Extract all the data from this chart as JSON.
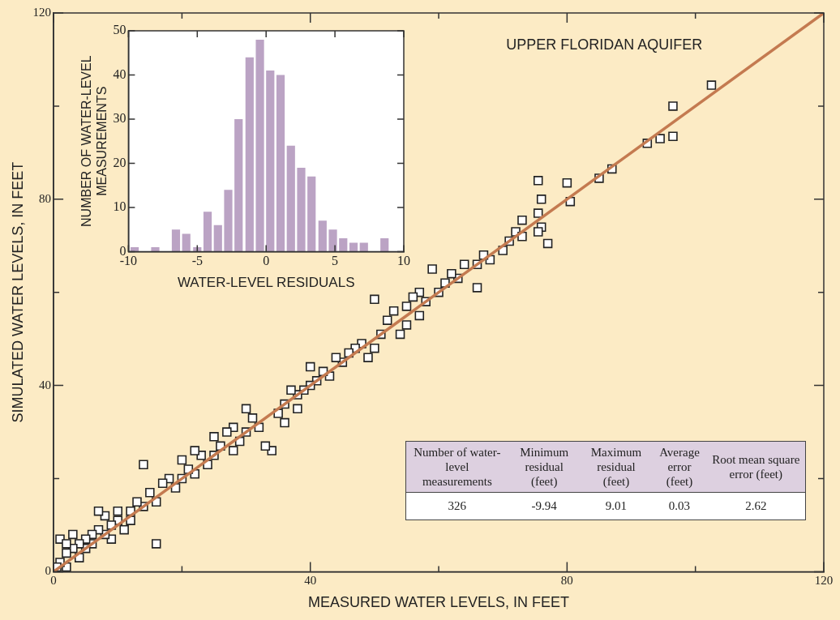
{
  "chart_data": [
    {
      "type": "scatter",
      "title": "UPPER FLORIDAN AQUIFER",
      "xlabel": "MEASURED WATER LEVELS, IN FEET",
      "ylabel": "SIMULATED WATER LEVELS, IN FEET",
      "marker": "square",
      "xlim": [
        0,
        120
      ],
      "ylim": [
        0,
        120
      ],
      "xticks": [
        0,
        {
          "value": 20,
          "label": null
        },
        40,
        {
          "value": 60,
          "label": null
        },
        80,
        {
          "value": 100,
          "label": null
        },
        120
      ],
      "yticks": [
        0,
        {
          "value": 20,
          "label": null
        },
        40,
        {
          "value": 60,
          "label": null
        },
        80,
        {
          "value": 100,
          "label": null
        },
        120
      ],
      "series": [
        {
          "type": "scatter",
          "color": "#ffffff",
          "x": [
            102.5,
            96.5,
            96.5,
            94.5,
            92.5,
            87,
            85,
            80,
            80.5,
            75.5,
            76,
            75.5,
            76,
            75.5,
            77,
            73,
            72,
            73,
            71,
            70,
            68,
            67,
            66,
            66,
            64,
            63,
            62,
            61,
            60,
            59,
            58,
            57,
            57,
            56,
            55,
            55,
            54,
            53,
            52,
            51,
            50,
            50,
            49,
            48,
            47,
            46,
            45,
            44,
            43,
            42,
            41,
            40,
            40,
            39,
            38,
            38,
            37,
            36,
            36,
            35,
            34,
            33,
            32,
            31,
            30,
            30,
            29,
            28,
            28,
            27,
            26,
            25,
            25,
            24,
            23,
            22,
            22,
            21,
            20,
            20,
            19,
            18,
            17,
            16,
            15,
            14,
            14,
            13,
            12,
            12,
            11,
            10,
            10,
            9,
            9,
            8,
            8,
            7,
            7,
            6,
            6,
            5,
            5,
            4,
            4,
            3,
            3,
            2,
            2,
            1,
            1,
            0.5,
            2,
            16
          ],
          "values": [
            104.5,
            100,
            93.5,
            93,
            92,
            86.5,
            84.5,
            83.5,
            79.5,
            84,
            80,
            77,
            74,
            73,
            70.5,
            75.5,
            73,
            72,
            71,
            69,
            67,
            68,
            66,
            61,
            66,
            63,
            64,
            62,
            60,
            65,
            58,
            60,
            55,
            59,
            57,
            53,
            51,
            56,
            54,
            51,
            58.5,
            48,
            46,
            49,
            48,
            47,
            45,
            46,
            42,
            43,
            41,
            44,
            40,
            39,
            38,
            35,
            39,
            36,
            32,
            34,
            26,
            27,
            31,
            33,
            35,
            30,
            28,
            31,
            26,
            30,
            27,
            29,
            25,
            23,
            25,
            26,
            21,
            22,
            20,
            24,
            18,
            20,
            19,
            15,
            17,
            23,
            14,
            15,
            11,
            13,
            9,
            11,
            13,
            10,
            7,
            8,
            12,
            9,
            13,
            6,
            8,
            7,
            5,
            6,
            3,
            5,
            8,
            4,
            1,
            2,
            7,
            1,
            6,
            6
          ]
        },
        {
          "type": "line",
          "marker": "none",
          "color": "#c47a50",
          "x": [
            0,
            120
          ],
          "values": [
            0,
            120
          ]
        }
      ]
    },
    {
      "type": "histogram",
      "xlabel": "WATER-LEVEL RESIDUALS",
      "ylabel": "NUMBER OF WATER-LEVEL MEASUREMENTS",
      "color": "#bba3c4",
      "xlim": [
        -10,
        10
      ],
      "ylim": [
        0,
        50
      ],
      "xticks": [
        -10,
        -5,
        0,
        5,
        10
      ],
      "yticks": [
        0,
        10,
        20,
        30,
        40,
        50
      ],
      "bins": [
        -9.9,
        -9.2,
        -8.4,
        -7.7,
        -6.9,
        -6.2,
        -5.4,
        -4.6,
        -3.9,
        -3.1,
        -2.4,
        -1.6,
        -0.8,
        -0.1,
        0.7,
        1.4,
        2.2,
        2.9,
        3.7,
        4.5,
        5.2,
        6.0,
        6.7,
        7.5,
        8.2,
        9.0
      ],
      "values": [
        1,
        0,
        1,
        0,
        5,
        4,
        1,
        9,
        6,
        14,
        30,
        44,
        48,
        41,
        40,
        24,
        19,
        17,
        7,
        5,
        3,
        2,
        2,
        0,
        3
      ]
    },
    {
      "type": "other",
      "data_labels": true,
      "categories": [
        "Number of water-level measurements",
        "Minimum residual (feet)",
        "Maximum residual (feet)",
        "Average error (feet)",
        "Root mean square error (feet)"
      ],
      "values": [
        326,
        -9.94,
        9.01,
        0.03,
        2.62
      ]
    }
  ]
}
